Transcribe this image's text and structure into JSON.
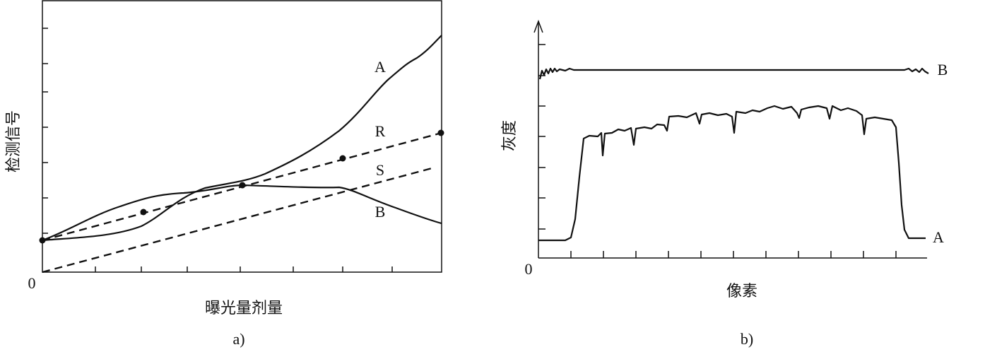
{
  "figure_a": {
    "y_label": "检测信号",
    "x_label": "曝光量剂量",
    "origin": "0",
    "curve_labels": [
      "A",
      "R",
      "S",
      "B"
    ],
    "caption": "a)"
  },
  "figure_b": {
    "y_label": "灰度",
    "x_label": "像素",
    "origin": "0",
    "curve_labels": [
      "B",
      "A"
    ],
    "caption": "b)"
  }
}
